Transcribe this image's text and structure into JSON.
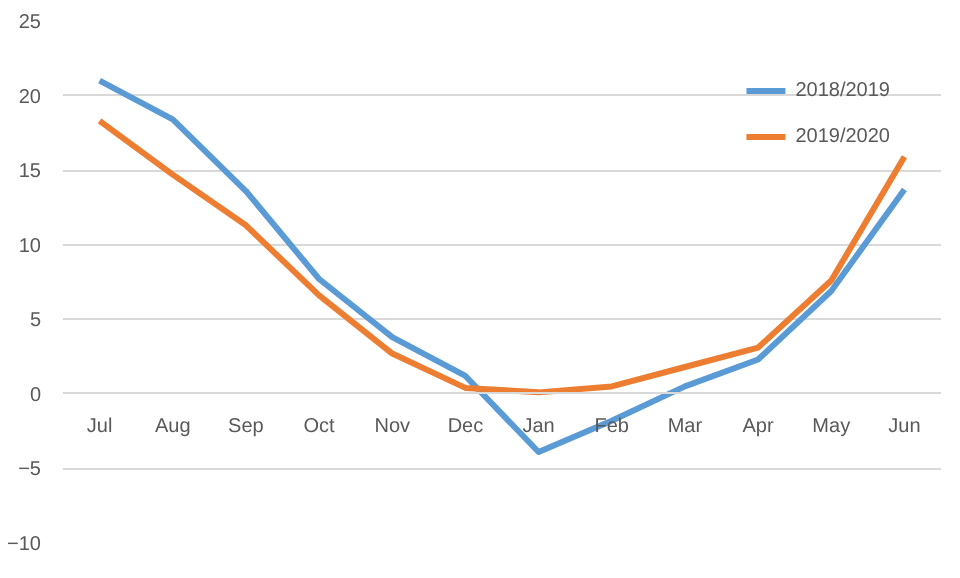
{
  "chart_data": {
    "type": "line",
    "categories": [
      "Jul",
      "Aug",
      "Sep",
      "Oct",
      "Nov",
      "Dec",
      "Jan",
      "Feb",
      "Mar",
      "Apr",
      "May",
      "Jun"
    ],
    "series": [
      {
        "name": "2018/2019",
        "color": "#5b9bd5",
        "values": [
          21.0,
          18.4,
          13.6,
          7.7,
          3.8,
          1.2,
          -3.9,
          -1.8,
          0.5,
          2.3,
          6.9,
          13.7
        ]
      },
      {
        "name": "2019/2020",
        "color": "#ed7d31",
        "values": [
          18.3,
          14.7,
          11.3,
          6.6,
          2.7,
          0.4,
          0.1,
          0.5,
          1.8,
          3.1,
          7.6,
          15.9
        ]
      }
    ],
    "ylim": [
      -10,
      25
    ],
    "yticks": [
      -10,
      -5,
      0,
      5,
      10,
      15,
      20,
      25
    ],
    "grid": "y",
    "legend": "top right",
    "line_style": "solid",
    "marker": "none"
  }
}
